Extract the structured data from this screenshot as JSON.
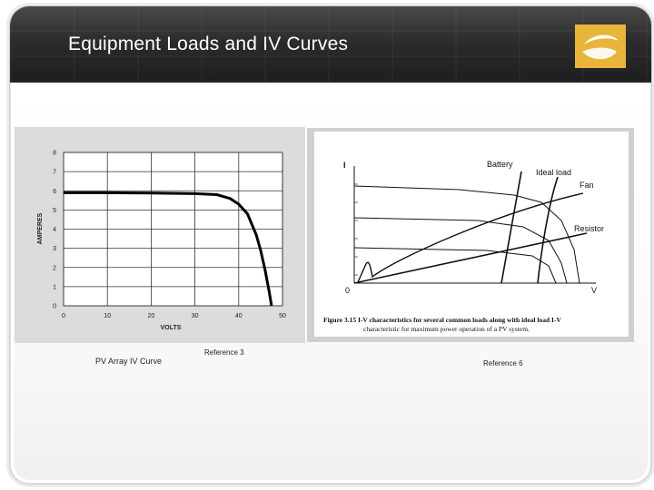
{
  "slide": {
    "title": "Equipment Loads and IV  Curves",
    "colors": {
      "header": "#2a2a2a",
      "logo": "#e8b53a"
    }
  },
  "left_graph": {
    "caption": "PV Array IV Curve",
    "reference": "Reference 3",
    "chart_data": {
      "type": "line",
      "xlabel": "VOLTS",
      "ylabel": "AMPERES",
      "xlim": [
        0,
        50
      ],
      "ylim": [
        0,
        8
      ],
      "x_ticks": [
        "0",
        "10",
        "20",
        "30",
        "40",
        "50"
      ],
      "y_ticks": [
        "0",
        "1",
        "2",
        "3",
        "4",
        "5",
        "6",
        "7",
        "8"
      ],
      "grid": true,
      "series": [
        {
          "x": [
            0,
            10,
            20,
            30,
            35,
            38,
            40,
            42,
            44,
            45,
            46,
            47,
            47.5
          ],
          "y": [
            5.9,
            5.9,
            5.88,
            5.85,
            5.8,
            5.6,
            5.3,
            4.8,
            3.7,
            2.9,
            1.9,
            0.7,
            0
          ]
        }
      ]
    }
  },
  "right_graph": {
    "reference": "Reference 6",
    "labels": {
      "y_axis": "I",
      "x_axis": "V",
      "origin": "0",
      "battery": "Battery",
      "ideal_load": "Ideal load",
      "fan": "Fan",
      "resistor": "Resistor"
    },
    "figure_caption_line1": "Figure 3.15  I-V characteristics for several common loads along with ideal load I-V",
    "figure_caption_line2": "characteristic for maximum power operation of a PV system."
  }
}
